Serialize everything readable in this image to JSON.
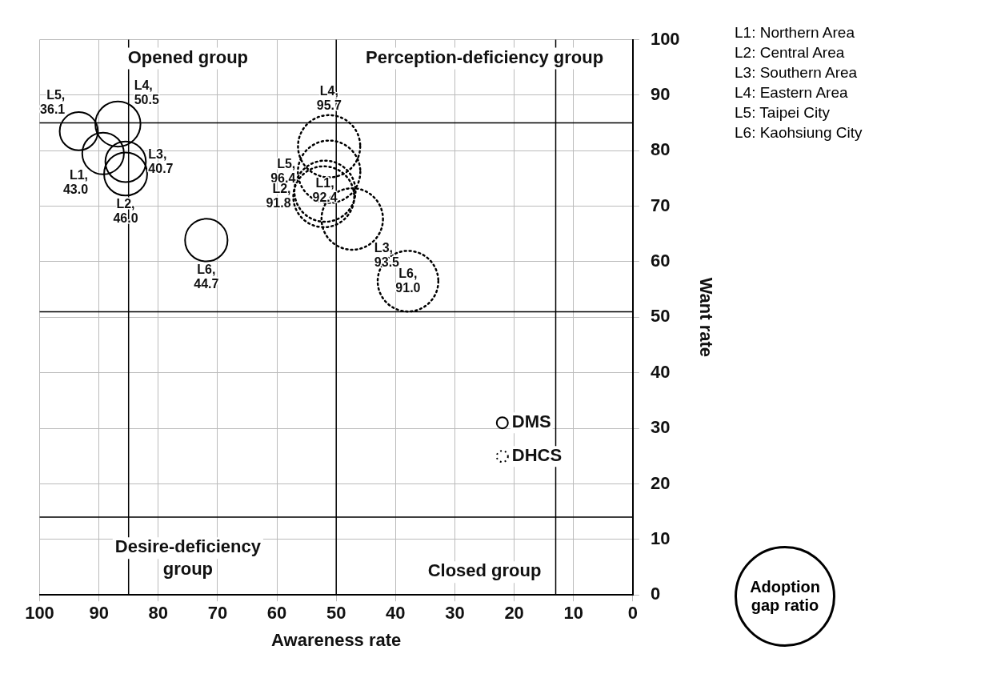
{
  "chart_data": {
    "type": "bubble",
    "xlabel": "Awareness rate",
    "ylabel": "Want rate",
    "xlim": [
      100,
      0
    ],
    "xticks": [
      100,
      90,
      80,
      70,
      60,
      50,
      40,
      30,
      20,
      10,
      0
    ],
    "ylim": [
      0,
      100
    ],
    "yticks": [
      0,
      10,
      20,
      30,
      40,
      50,
      60,
      70,
      80,
      90,
      100
    ],
    "grid": true,
    "legend": "bottom right",
    "series": [
      {
        "name": "DMS",
        "color": "#000000",
        "line_style": "solid",
        "x": [
          93.4,
          86.8,
          89.3,
          85.5,
          85.5,
          71.9
        ],
        "values": [
          83.5,
          84.8,
          79.5,
          78,
          75.8,
          63.9
        ],
        "sizes": [
          0.374,
          0.524,
          0.446,
          0.422,
          0.477,
          0.464
        ],
        "value_labels": [
          "L5, 36.1",
          "L4, 50.5",
          "L1, 43.0",
          "L3, 40.7",
          "L2, 46.0",
          "L6, 44.7"
        ]
      },
      {
        "name": "DHCS",
        "color": "#000000",
        "line_style": "dotted",
        "x": [
          51.2,
          51.2,
          52.1,
          51.9,
          47.3,
          37.9
        ],
        "values": [
          80.8,
          76.2,
          71.7,
          72.7,
          67.7,
          56.5
        ],
        "sizes": [
          0.993,
          1,
          0.952,
          0.959,
          0.97,
          0.944
        ],
        "value_labels": [
          "L4, 95.7",
          "L5, 96.4",
          "L2, 91.8",
          "L1, 92.4",
          "L3, 93.5",
          "L6, 91.0"
        ]
      }
    ],
    "ref_lines": [
      {
        "axis": "x",
        "value": 85
      },
      {
        "axis": "x",
        "value": 50
      },
      {
        "axis": "x",
        "value": 13
      },
      {
        "axis": "y",
        "value": 85
      },
      {
        "axis": "y",
        "value": 51
      },
      {
        "axis": "y",
        "value": 14
      }
    ],
    "annotations": [
      "Opened group",
      "Perception-deficiency group",
      "Desire-deficiency group",
      "Closed group",
      "L1: Northern Area",
      "L2: Central Area",
      "L3: Southern Area",
      "L4: Eastern Area",
      "L5: Taipei City",
      "L6: Kaohsiung City",
      "Adoption gap ratio"
    ]
  }
}
